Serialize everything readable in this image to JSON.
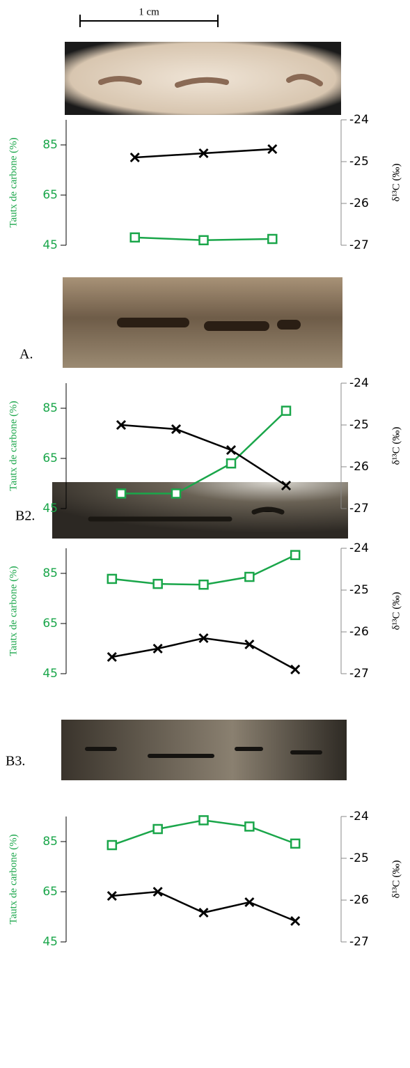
{
  "scale_bar": "1 cm",
  "panel_labels": [
    "A.",
    "B2.",
    "B3."
  ],
  "chart_data": [
    {
      "type": "line",
      "ylabel": "Tautx de carbone (%)",
      "y2label": "δ¹³C (‰)",
      "categories": [
        null,
        null,
        null
      ],
      "ylim": [
        45,
        95
      ],
      "yticks": [
        45,
        65,
        85
      ],
      "y2lim": [
        -27,
        -24
      ],
      "y2ticks": [
        -24,
        -25,
        -26,
        -27
      ],
      "series": [
        {
          "color": "#1aa64a",
          "marker": "square",
          "values": [
            48.1,
            47.0,
            47.5
          ]
        },
        {
          "color": "#000000",
          "marker": "x",
          "axis": "y2",
          "values": [
            -24.9,
            -24.8,
            -24.7
          ]
        }
      ]
    },
    {
      "type": "line",
      "ylabel": "Tautx de carbone (%)",
      "y2label": "δ¹³C (‰)",
      "categories": [
        null,
        null,
        null,
        null
      ],
      "ylim": [
        45,
        95
      ],
      "yticks": [
        45,
        65,
        85
      ],
      "y2lim": [
        -27,
        -24
      ],
      "y2ticks": [
        -24,
        -25,
        -26,
        -27
      ],
      "series": [
        {
          "color": "#1aa64a",
          "marker": "square",
          "values": [
            51,
            51,
            63,
            84
          ]
        },
        {
          "color": "#000000",
          "marker": "x",
          "axis": "y2",
          "values": [
            -25.0,
            -25.1,
            -25.6,
            -26.45
          ]
        }
      ]
    },
    {
      "type": "line",
      "ylabel": "Tautx de carbone (%)",
      "y2label": "δ¹³C (‰)",
      "categories": [
        null,
        null,
        null,
        null,
        null
      ],
      "ylim": [
        45,
        95
      ],
      "yticks": [
        45,
        65,
        85
      ],
      "y2lim": [
        -27,
        -24
      ],
      "y2ticks": [
        -24,
        -25,
        -26,
        -27
      ],
      "series": [
        {
          "color": "#1aa64a",
          "marker": "square",
          "values": [
            82.8,
            80.8,
            80.5,
            83.6,
            92.3
          ]
        },
        {
          "color": "#000000",
          "marker": "x",
          "axis": "y2",
          "values": [
            -26.6,
            -26.4,
            -26.15,
            -26.3,
            -26.9
          ]
        }
      ]
    },
    {
      "type": "line",
      "ylabel": "Tautx de carbone (%)",
      "y2label": "δ¹³C (‰)",
      "categories": [
        null,
        null,
        null,
        null,
        null
      ],
      "ylim": [
        45,
        95
      ],
      "yticks": [
        45,
        65,
        85
      ],
      "y2lim": [
        -27,
        -24
      ],
      "y2ticks": [
        -24,
        -25,
        -26,
        -27
      ],
      "series": [
        {
          "color": "#1aa64a",
          "marker": "square",
          "values": [
            83.6,
            90,
            93.5,
            91,
            84.2
          ]
        },
        {
          "color": "#000000",
          "marker": "x",
          "axis": "y2",
          "values": [
            -25.9,
            -25.8,
            -26.3,
            -26.05,
            -26.5
          ]
        }
      ]
    }
  ]
}
